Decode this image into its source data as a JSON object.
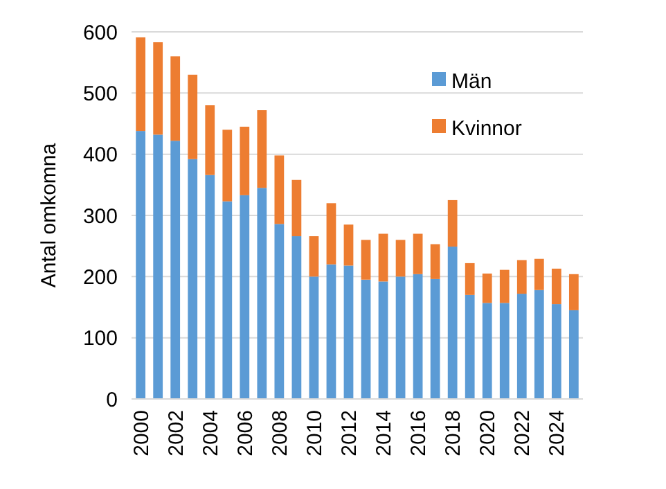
{
  "chart_data": {
    "type": "bar",
    "stacked": true,
    "ylabel": "Antal omkomna",
    "categories": [
      "2000",
      null,
      "2002",
      null,
      "2004",
      null,
      "2006",
      null,
      "2008",
      null,
      "2010",
      null,
      "2012",
      null,
      "2014",
      null,
      "2016",
      null,
      "2018",
      null,
      "2020",
      null,
      "2022",
      null,
      "2024",
      null
    ],
    "series": [
      {
        "name": "Män",
        "color": "#5b9bd5",
        "values": [
          438,
          432,
          422,
          392,
          366,
          323,
          333,
          345,
          286,
          266,
          200,
          220,
          218,
          195,
          192,
          200,
          204,
          196,
          249,
          170,
          157,
          157,
          172,
          178,
          155,
          145
        ]
      },
      {
        "name": "Kvinnor",
        "color": "#ed7d31",
        "values": [
          153,
          151,
          138,
          138,
          114,
          117,
          112,
          127,
          112,
          92,
          66,
          100,
          67,
          65,
          78,
          60,
          66,
          57,
          76,
          52,
          48,
          54,
          55,
          51,
          58,
          59
        ]
      }
    ],
    "ylim": [
      0,
      600
    ],
    "yticks": [
      0,
      100,
      200,
      300,
      400,
      500,
      600
    ],
    "grid": "y",
    "legend": "top right"
  }
}
